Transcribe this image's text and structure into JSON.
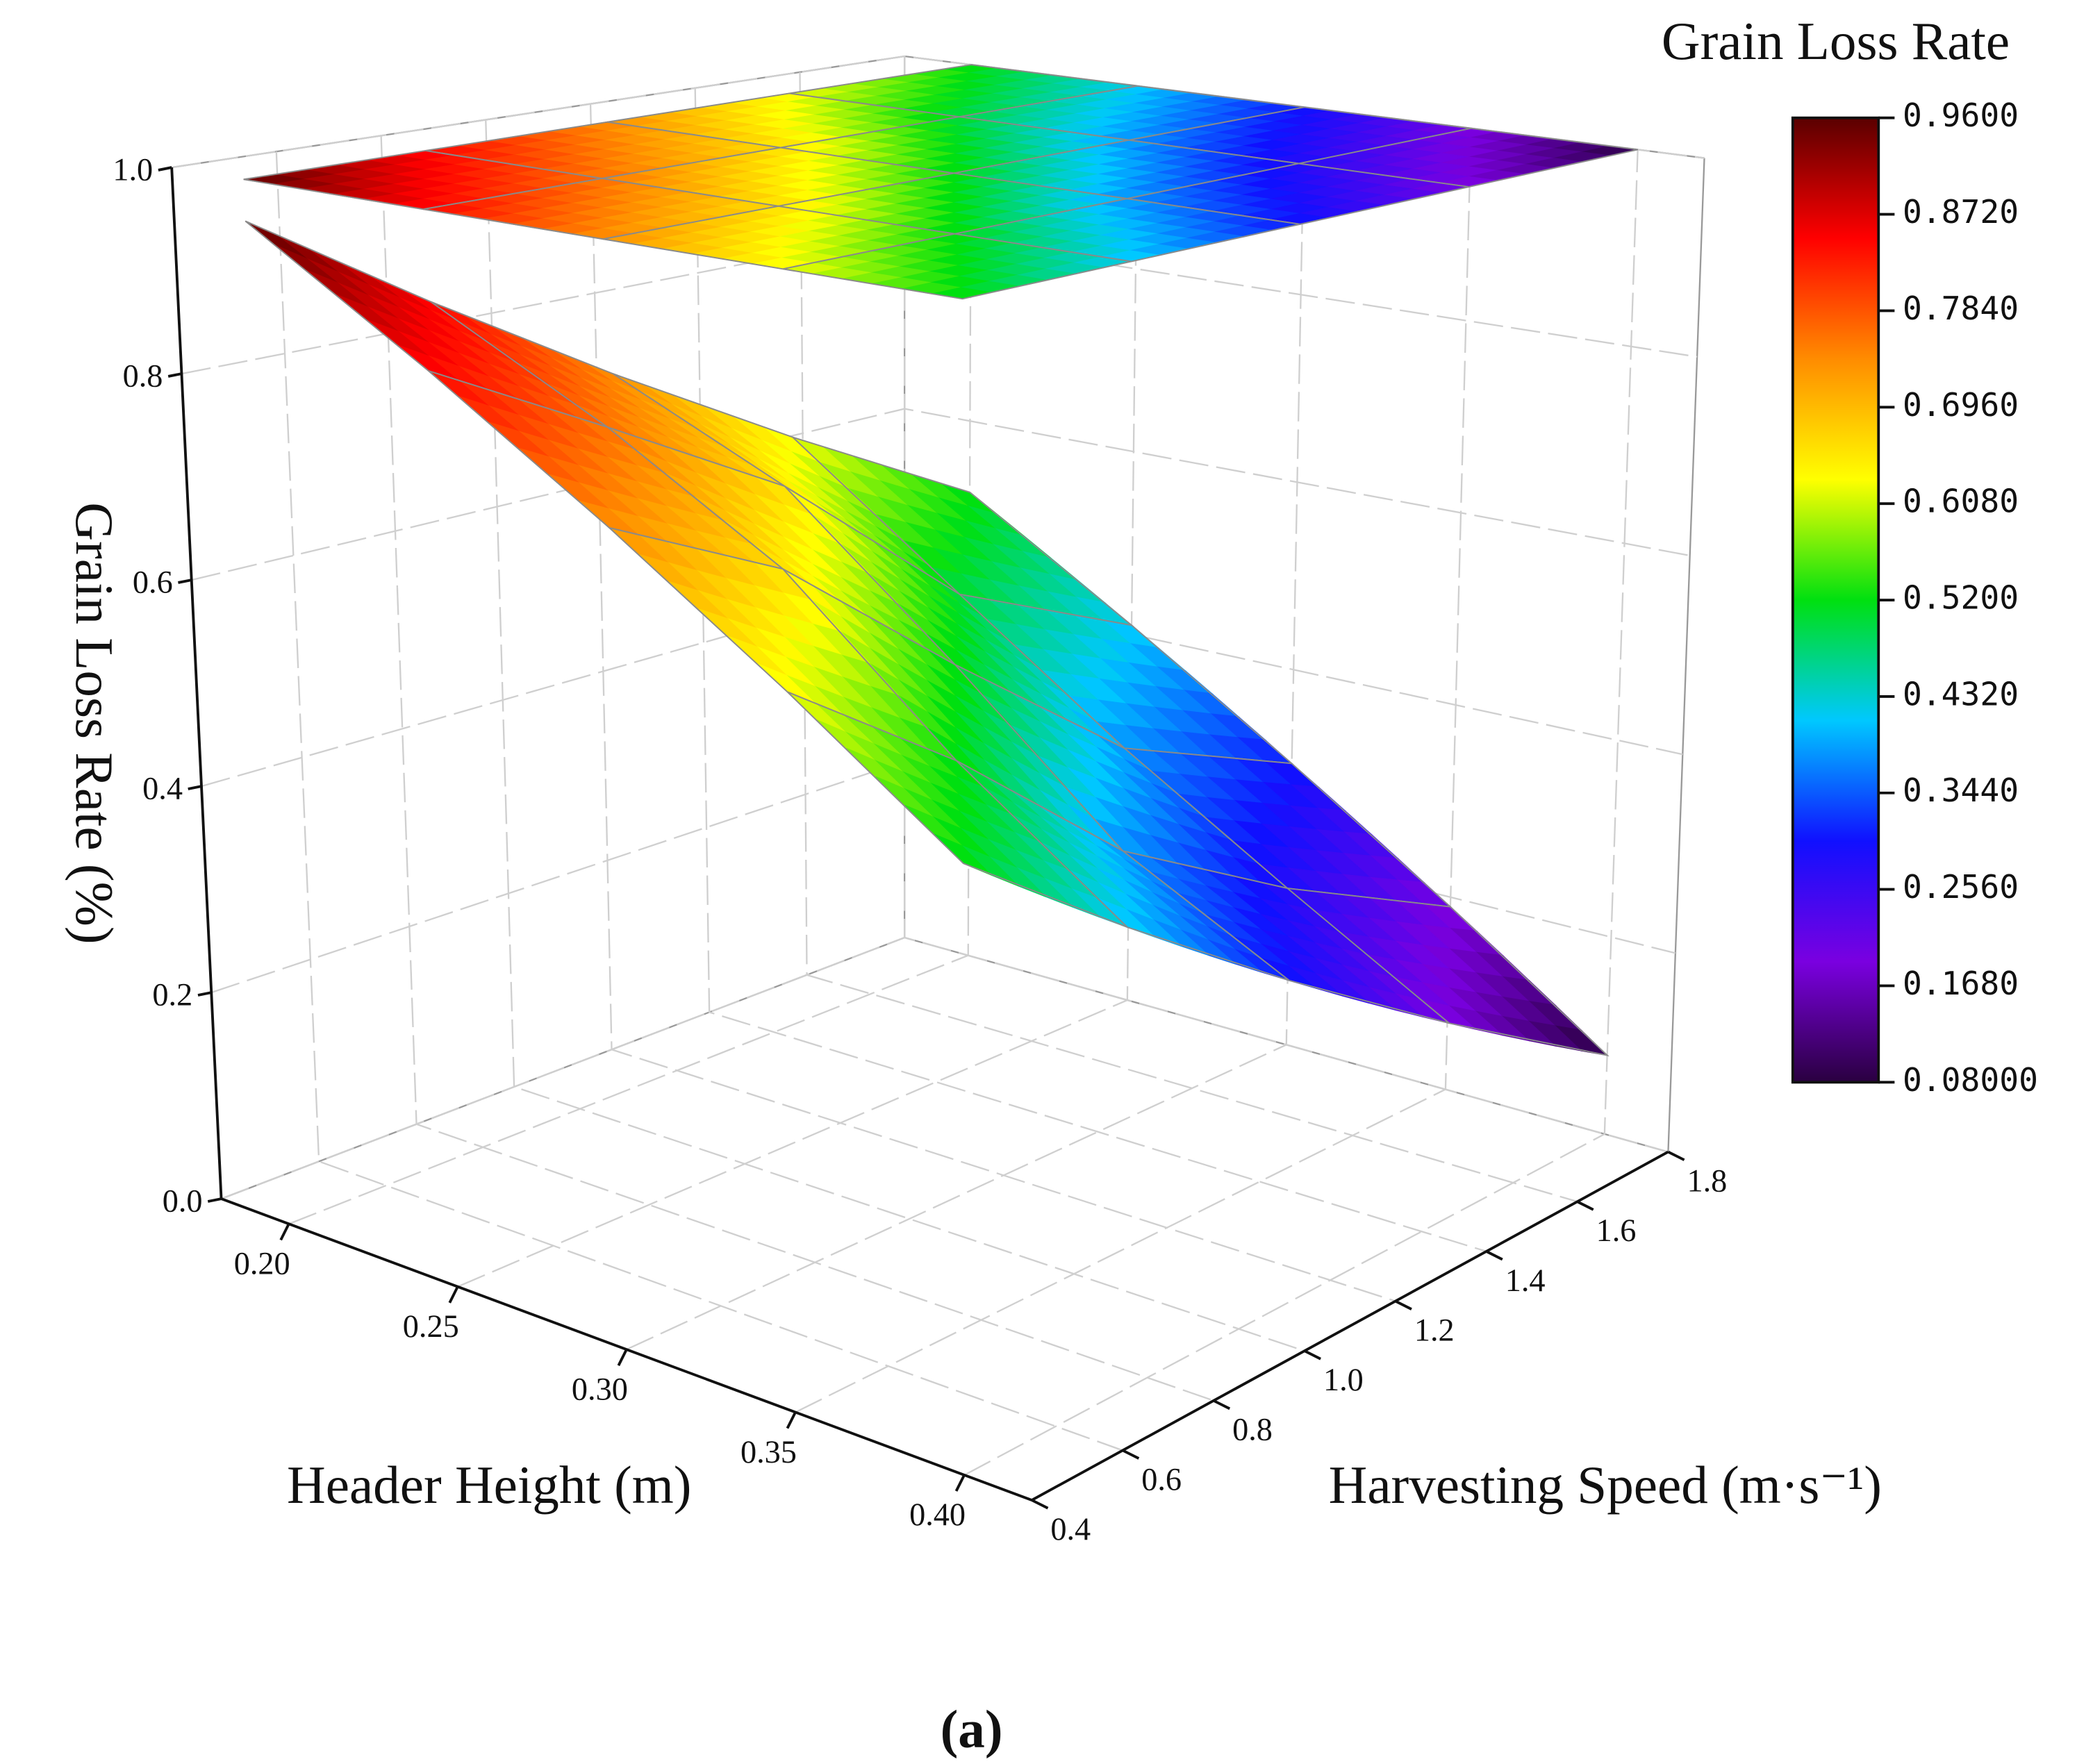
{
  "chart_data": {
    "type": "surface3d",
    "colorbar_title": "Grain Loss Rate",
    "xlabel": "Header Height (m)",
    "ylabel": "Harvesting Speed (m·s⁻¹)",
    "zlabel": "Grain Loss Rate (%)",
    "caption": "(a)",
    "x": [
      0.2,
      0.25,
      0.3,
      0.35,
      0.4
    ],
    "y": [
      0.4,
      0.75,
      1.1,
      1.45,
      1.8
    ],
    "z": [
      [
        0.96,
        0.85,
        0.74,
        0.63,
        0.52
      ],
      [
        0.85,
        0.76,
        0.66,
        0.5,
        0.41
      ],
      [
        0.74,
        0.66,
        0.52,
        0.38,
        0.3
      ],
      [
        0.63,
        0.52,
        0.38,
        0.28,
        0.19
      ],
      [
        0.52,
        0.41,
        0.3,
        0.19,
        0.08
      ]
    ],
    "xlim": [
      0.18,
      0.42
    ],
    "ylim": [
      0.4,
      1.8
    ],
    "zlim": [
      0,
      1
    ],
    "xticks": [
      {
        "value": 0.2,
        "label": "0.20"
      },
      {
        "value": 0.25,
        "label": "0.25"
      },
      {
        "value": 0.3,
        "label": "0.30"
      },
      {
        "value": 0.35,
        "label": "0.35"
      },
      {
        "value": 0.4,
        "label": "0.40"
      }
    ],
    "yticks": [
      0.4,
      0.6,
      0.8,
      {
        "value": 1.0,
        "label": "1.0"
      },
      1.2,
      1.4,
      1.6,
      1.8
    ],
    "zticks": [
      {
        "value": 0,
        "label": "0.0"
      },
      0.2,
      0.4,
      0.6,
      0.8,
      {
        "value": 1,
        "label": "1.0"
      }
    ],
    "clim": [
      0.08,
      0.96
    ],
    "colorbar_ticks": [
      {
        "value": 0.96,
        "label": "0.9600"
      },
      {
        "value": 0.872,
        "label": "0.8720"
      },
      {
        "value": 0.784,
        "label": "0.7840"
      },
      {
        "value": 0.696,
        "label": "0.6960"
      },
      {
        "value": 0.608,
        "label": "0.6080"
      },
      {
        "value": 0.52,
        "label": "0.5200"
      },
      {
        "value": 0.432,
        "label": "0.4320"
      },
      {
        "value": 0.344,
        "label": "0.3440"
      },
      {
        "value": 0.256,
        "label": "0.2560"
      },
      {
        "value": 0.168,
        "label": "0.1680"
      },
      {
        "value": 0.08,
        "label": "0.08000"
      }
    ],
    "colormap": [
      "#2a0040",
      "#7a00e0",
      "#1010ff",
      "#00c8ff",
      "#00e010",
      "#ffff00",
      "#ff8c00",
      "#ff0000",
      "#5a0000"
    ],
    "top_projection": true,
    "grid": true
  }
}
